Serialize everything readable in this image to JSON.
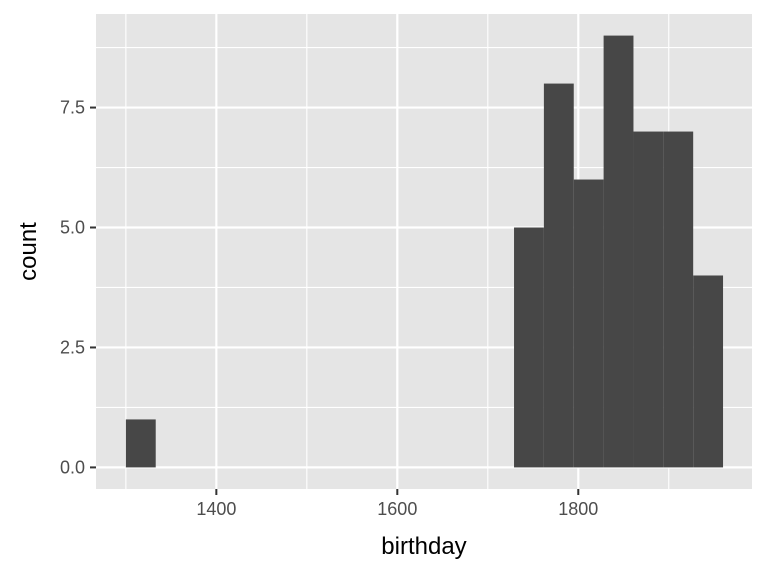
{
  "chart_data": {
    "type": "bar",
    "subtype": "histogram",
    "xlabel": "birthday",
    "ylabel": "count",
    "xlim": [
      1267,
      1992
    ],
    "ylim": [
      -0.45,
      9.45
    ],
    "x_ticks": [
      1400,
      1600,
      1800
    ],
    "x_tick_labels": [
      "1400",
      "1600",
      "1800"
    ],
    "y_ticks": [
      0,
      2.5,
      5,
      7.5
    ],
    "y_tick_labels": [
      "0.0",
      "2.5",
      "5.0",
      "7.5"
    ],
    "bins": [
      {
        "x_start": 1300,
        "x_end": 1333,
        "count": 1
      },
      {
        "x_start": 1333,
        "x_end": 1366,
        "count": 0
      },
      {
        "x_start": 1366,
        "x_end": 1399,
        "count": 0
      },
      {
        "x_start": 1399,
        "x_end": 1432,
        "count": 0
      },
      {
        "x_start": 1432,
        "x_end": 1465,
        "count": 0
      },
      {
        "x_start": 1465,
        "x_end": 1498,
        "count": 0
      },
      {
        "x_start": 1498,
        "x_end": 1531,
        "count": 0
      },
      {
        "x_start": 1531,
        "x_end": 1564,
        "count": 0
      },
      {
        "x_start": 1564,
        "x_end": 1597,
        "count": 0
      },
      {
        "x_start": 1597,
        "x_end": 1630,
        "count": 0
      },
      {
        "x_start": 1630,
        "x_end": 1663,
        "count": 0
      },
      {
        "x_start": 1663,
        "x_end": 1696,
        "count": 0
      },
      {
        "x_start": 1696,
        "x_end": 1729,
        "count": 0
      },
      {
        "x_start": 1729,
        "x_end": 1762,
        "count": 5
      },
      {
        "x_start": 1762,
        "x_end": 1795,
        "count": 8
      },
      {
        "x_start": 1795,
        "x_end": 1828,
        "count": 6
      },
      {
        "x_start": 1828,
        "x_end": 1861,
        "count": 9
      },
      {
        "x_start": 1861,
        "x_end": 1894,
        "count": 7
      },
      {
        "x_start": 1894,
        "x_end": 1927,
        "count": 7
      },
      {
        "x_start": 1927,
        "x_end": 1960,
        "count": 4
      }
    ],
    "grid": true,
    "colors": {
      "panel_background": "#e5e5e5",
      "grid": "#ffffff",
      "bar_fill": "#474747"
    }
  }
}
